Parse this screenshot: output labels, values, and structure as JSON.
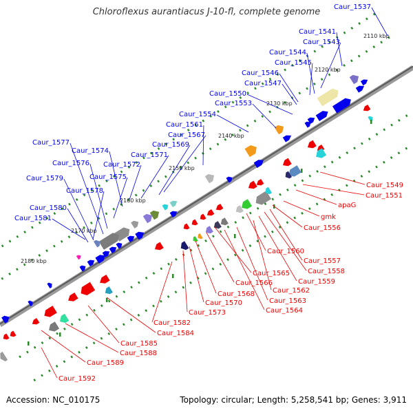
{
  "title": "Chloroflexus aurantiacus J-10-fl, complete genome",
  "footer": {
    "accession": "Accession: NC_010175",
    "summary": "Topology: circular; Length: 5,258,541 bp; Genes: 3,911"
  },
  "colors": {
    "forward": "#0000ee",
    "reverse": "#ee0000",
    "backbone": "#666666",
    "tick": "#2a8a2a"
  },
  "kbp_labels": [
    "2110 kbp",
    "2120 kbp",
    "2130 kbp",
    "2140 kbp",
    "2150 kbp",
    "2160 kbp",
    "2170 kbp",
    "2180 kbp"
  ],
  "genes_forward": [
    "Caur_1537",
    "Caur_1541",
    "Caur_1543",
    "Caur_1544",
    "Caur_1545",
    "Caur_1546",
    "Caur_1547",
    "Caur_1550",
    "Caur_1553",
    "Caur_1554",
    "Caur_1561",
    "Caur_1567",
    "Caur_1569",
    "Caur_1571",
    "Caur_1572",
    "Caur_1574",
    "Caur_1575",
    "Caur_1576",
    "Caur_1577",
    "Caur_1578",
    "Caur_1579",
    "Caur_1580",
    "Caur_1581"
  ],
  "genes_reverse": [
    "Caur_1549",
    "Caur_1551",
    "apaG",
    "gmk",
    "Caur_1556",
    "Caur_1560",
    "Caur_1557",
    "Caur_1558",
    "Caur_1559",
    "Caur_1562",
    "Caur_1563",
    "Caur_1564",
    "Caur_1565",
    "Caur_1566",
    "Caur_1568",
    "Caur_1570",
    "Caur_1573",
    "Caur_1582",
    "Caur_1584",
    "Caur_1585",
    "Caur_1588",
    "Caur_1589",
    "Caur_1592"
  ]
}
